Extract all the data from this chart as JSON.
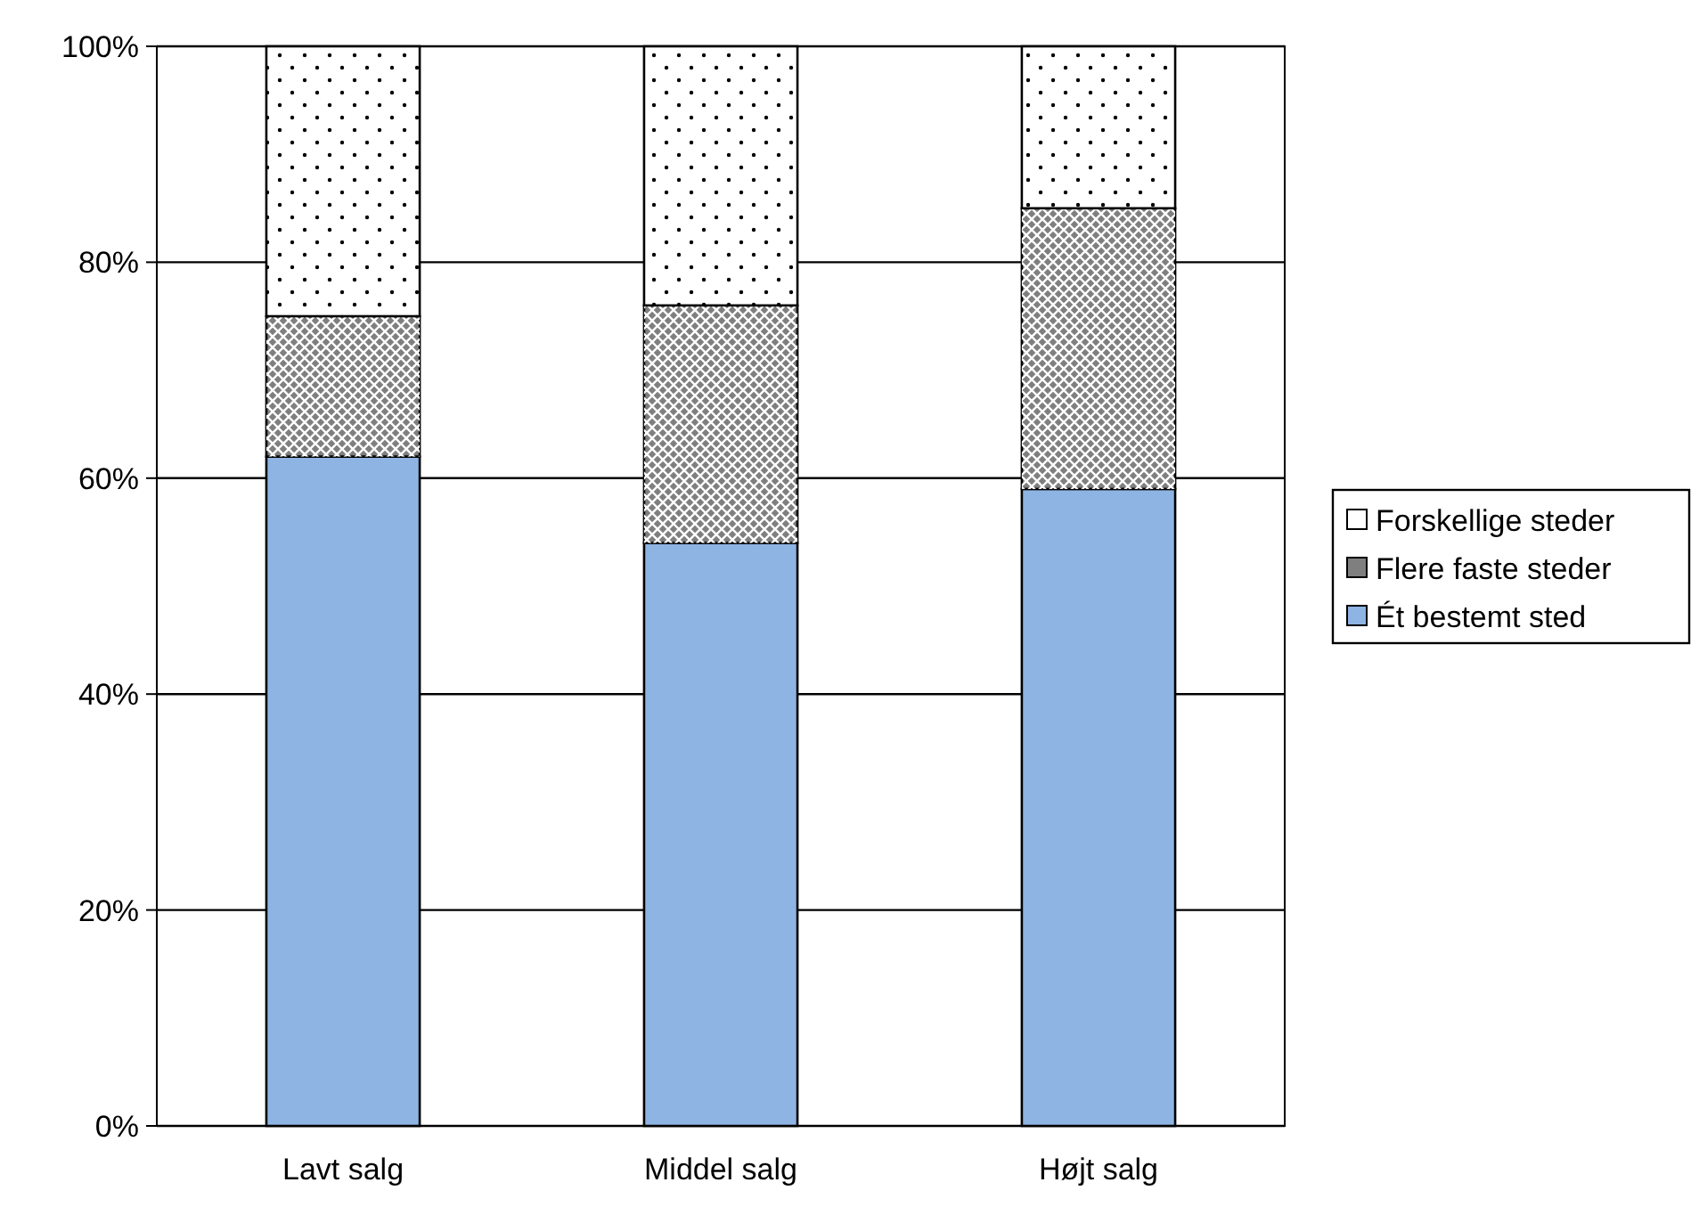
{
  "chart_data": {
    "type": "bar",
    "stacked": true,
    "categories": [
      "Lavt salg",
      "Middel salg",
      "Højt salg"
    ],
    "series": [
      {
        "name": "Ét bestemt sted",
        "color": "#8eb4e3",
        "values": [
          62,
          54,
          59
        ]
      },
      {
        "name": "Flere faste steder",
        "color": "#7f7f7f",
        "values": [
          13,
          22,
          26
        ]
      },
      {
        "name": "Forskellige steder",
        "color": "#ffffff",
        "values": [
          25,
          24,
          15
        ]
      }
    ],
    "ylim": [
      0,
      100
    ],
    "yticks": [
      {
        "value": 0,
        "label": "0%"
      },
      {
        "value": 20,
        "label": "20%"
      },
      {
        "value": 40,
        "label": "40%"
      },
      {
        "value": 60,
        "label": "60%"
      },
      {
        "value": 80,
        "label": "80%"
      },
      {
        "value": 100,
        "label": "100%"
      }
    ],
    "grid": "y",
    "legend": "right"
  }
}
